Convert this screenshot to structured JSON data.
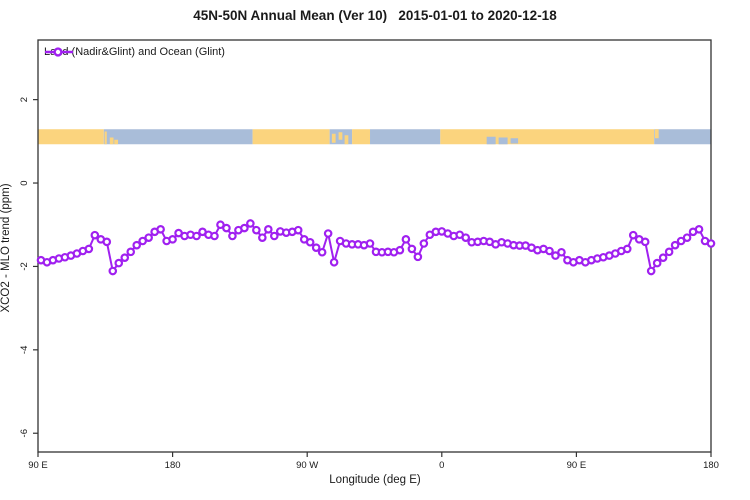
{
  "title": "45N-50N Annual Mean (Ver 10)   2015-01-01 to 2020-12-18",
  "legend": {
    "label": "Land (Nadir&Glint) and Ocean (Glint)"
  },
  "colors": {
    "series": "#A020F0",
    "land": "#FBD47E",
    "ocean": "#A9BDD9",
    "axis": "#333333",
    "text": "#1a1a1a"
  },
  "chart_data": {
    "type": "line",
    "title": "45N-50N Annual Mean (Ver 10)   2015-01-01 to 2020-12-18",
    "xlabel": "Longitude (deg E)",
    "ylabel": "XCO2 - MLO trend (ppm)",
    "x_axis_note": "longitude wrapped: 90E to 180 to 90W to 0 to 90E to 180 (values >360 = lon-360)",
    "xlim": [
      90,
      540
    ],
    "ylim": [
      -6.45,
      3.43
    ],
    "grid": false,
    "legend_position": "top-left",
    "x_ticks": [
      {
        "x": 90,
        "label": "90 E"
      },
      {
        "x": 180,
        "label": "180"
      },
      {
        "x": 270,
        "label": "90 W"
      },
      {
        "x": 360,
        "label": "0"
      },
      {
        "x": 450,
        "label": "90 E"
      },
      {
        "x": 540,
        "label": "180"
      }
    ],
    "y_ticks": [
      {
        "v": 2,
        "label": "2"
      },
      {
        "v": 0,
        "label": "0"
      },
      {
        "v": -2,
        "label": "-2"
      },
      {
        "v": -4,
        "label": "-4"
      },
      {
        "v": -6,
        "label": "-6"
      }
    ],
    "map_strip": {
      "value_top": 1.29,
      "value_bottom": 0.93,
      "segments": [
        {
          "type": "land",
          "from": 90,
          "to": 134
        },
        {
          "type": "ocean",
          "from": 134,
          "to": 233.5
        },
        {
          "type": "land",
          "from": 233.5,
          "to": 285
        },
        {
          "type": "ocean",
          "from": 285,
          "to": 300
        },
        {
          "type": "land",
          "from": 300,
          "to": 312
        },
        {
          "type": "ocean",
          "from": 312,
          "to": 359
        },
        {
          "type": "land",
          "from": 359,
          "to": 502
        },
        {
          "type": "ocean",
          "from": 502,
          "to": 540
        }
      ],
      "patches": [
        {
          "type": "land",
          "from": 134.5,
          "to": 136,
          "top": 0.15,
          "bottom": 1
        },
        {
          "type": "land",
          "from": 138,
          "to": 140.5,
          "top": 0.55,
          "bottom": 1
        },
        {
          "type": "land",
          "from": 141,
          "to": 143.5,
          "top": 0.7,
          "bottom": 1
        },
        {
          "type": "land",
          "from": 286.5,
          "to": 289,
          "top": 0.3,
          "bottom": 0.9
        },
        {
          "type": "land",
          "from": 291,
          "to": 293.5,
          "top": 0.2,
          "bottom": 0.7
        },
        {
          "type": "land",
          "from": 295,
          "to": 297.5,
          "top": 0.4,
          "bottom": 1
        },
        {
          "type": "ocean",
          "from": 390,
          "to": 396,
          "top": 0.5,
          "bottom": 1
        },
        {
          "type": "ocean",
          "from": 398,
          "to": 404,
          "top": 0.55,
          "bottom": 1
        },
        {
          "type": "ocean",
          "from": 406,
          "to": 411,
          "top": 0.6,
          "bottom": 0.95
        },
        {
          "type": "land",
          "from": 502.5,
          "to": 505,
          "top": 0,
          "bottom": 0.6
        }
      ]
    },
    "series": [
      {
        "name": "Land (Nadir&Glint) and Ocean (Glint)",
        "marker": "open-circle",
        "points": [
          [
            92,
            -1.85
          ],
          [
            96,
            -1.9
          ],
          [
            100,
            -1.85
          ],
          [
            104,
            -1.81
          ],
          [
            108,
            -1.78
          ],
          [
            112,
            -1.74
          ],
          [
            116,
            -1.69
          ],
          [
            120,
            -1.63
          ],
          [
            124,
            -1.58
          ],
          [
            128,
            -1.25
          ],
          [
            132,
            -1.35
          ],
          [
            136,
            -1.41
          ],
          [
            140,
            -2.11
          ],
          [
            144,
            -1.92
          ],
          [
            148,
            -1.79
          ],
          [
            152,
            -1.65
          ],
          [
            156,
            -1.49
          ],
          [
            160,
            -1.39
          ],
          [
            164,
            -1.31
          ],
          [
            168,
            -1.17
          ],
          [
            172,
            -1.11
          ],
          [
            176,
            -1.39
          ],
          [
            180,
            -1.35
          ],
          [
            184,
            -1.2
          ],
          [
            188,
            -1.27
          ],
          [
            192,
            -1.24
          ],
          [
            196,
            -1.27
          ],
          [
            200,
            -1.17
          ],
          [
            204,
            -1.24
          ],
          [
            208,
            -1.27
          ],
          [
            212,
            -1.0
          ],
          [
            216,
            -1.08
          ],
          [
            220,
            -1.27
          ],
          [
            224,
            -1.13
          ],
          [
            228,
            -1.08
          ],
          [
            232,
            -0.97
          ],
          [
            236,
            -1.13
          ],
          [
            240,
            -1.31
          ],
          [
            244,
            -1.11
          ],
          [
            248,
            -1.27
          ],
          [
            252,
            -1.16
          ],
          [
            256,
            -1.19
          ],
          [
            260,
            -1.17
          ],
          [
            264,
            -1.13
          ],
          [
            268,
            -1.35
          ],
          [
            272,
            -1.42
          ],
          [
            276,
            -1.55
          ],
          [
            280,
            -1.66
          ],
          [
            284,
            -1.21
          ],
          [
            288,
            -1.9
          ],
          [
            292,
            -1.39
          ],
          [
            296,
            -1.45
          ],
          [
            300,
            -1.47
          ],
          [
            304,
            -1.47
          ],
          [
            308,
            -1.49
          ],
          [
            312,
            -1.45
          ],
          [
            316,
            -1.65
          ],
          [
            320,
            -1.66
          ],
          [
            324,
            -1.65
          ],
          [
            328,
            -1.66
          ],
          [
            332,
            -1.61
          ],
          [
            336,
            -1.35
          ],
          [
            340,
            -1.58
          ],
          [
            344,
            -1.77
          ],
          [
            348,
            -1.45
          ],
          [
            352,
            -1.24
          ],
          [
            356,
            -1.17
          ],
          [
            360,
            -1.16
          ],
          [
            364,
            -1.21
          ],
          [
            368,
            -1.27
          ],
          [
            372,
            -1.24
          ],
          [
            376,
            -1.31
          ],
          [
            380,
            -1.42
          ],
          [
            384,
            -1.41
          ],
          [
            388,
            -1.39
          ],
          [
            392,
            -1.41
          ],
          [
            396,
            -1.47
          ],
          [
            400,
            -1.42
          ],
          [
            404,
            -1.45
          ],
          [
            408,
            -1.49
          ],
          [
            412,
            -1.5
          ],
          [
            416,
            -1.5
          ],
          [
            420,
            -1.55
          ],
          [
            424,
            -1.61
          ],
          [
            428,
            -1.58
          ],
          [
            432,
            -1.63
          ],
          [
            436,
            -1.74
          ],
          [
            440,
            -1.66
          ],
          [
            444,
            -1.85
          ],
          [
            448,
            -1.9
          ],
          [
            452,
            -1.85
          ],
          [
            456,
            -1.9
          ],
          [
            460,
            -1.85
          ],
          [
            464,
            -1.81
          ],
          [
            468,
            -1.78
          ],
          [
            472,
            -1.74
          ],
          [
            476,
            -1.69
          ],
          [
            480,
            -1.63
          ],
          [
            484,
            -1.58
          ],
          [
            488,
            -1.25
          ],
          [
            492,
            -1.35
          ],
          [
            496,
            -1.41
          ],
          [
            500,
            -2.11
          ],
          [
            504,
            -1.92
          ],
          [
            508,
            -1.79
          ],
          [
            512,
            -1.65
          ],
          [
            516,
            -1.49
          ],
          [
            520,
            -1.39
          ],
          [
            524,
            -1.31
          ],
          [
            528,
            -1.17
          ],
          [
            532,
            -1.11
          ],
          [
            536,
            -1.39
          ],
          [
            540,
            -1.45
          ]
        ]
      }
    ]
  }
}
